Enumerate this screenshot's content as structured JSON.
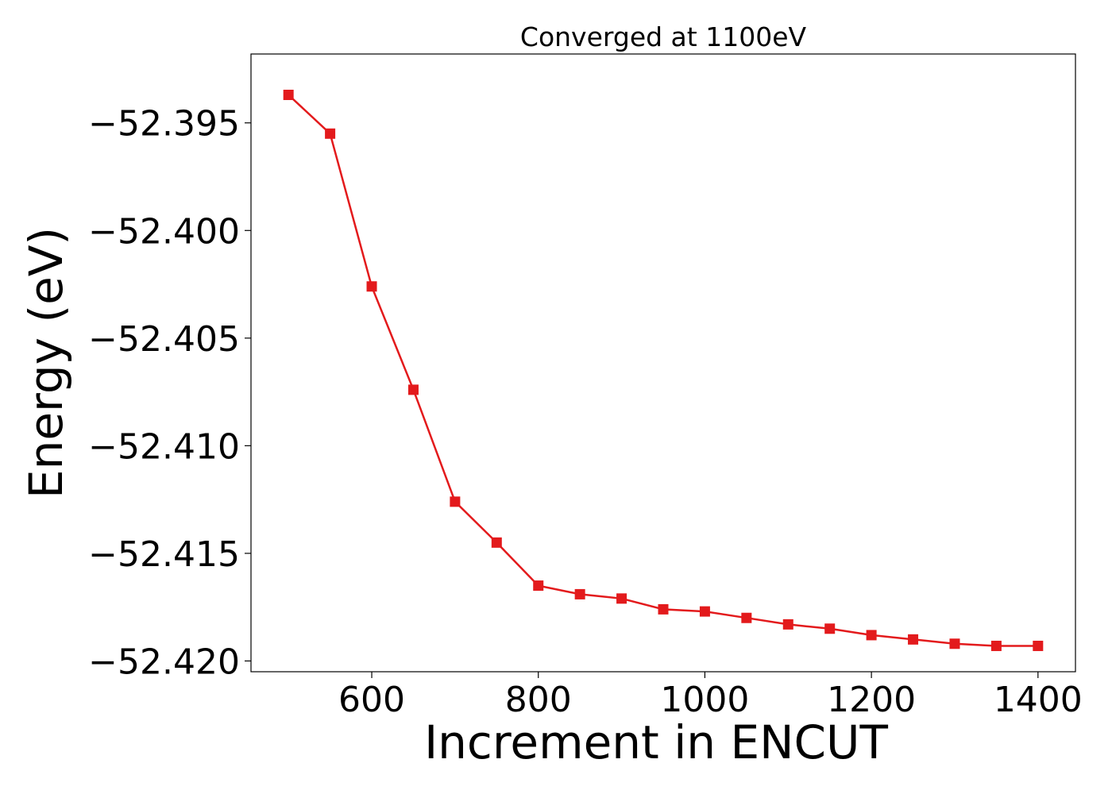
{
  "chart_data": {
    "type": "line",
    "title": "Converged at 1100eV",
    "xlabel": "Increment in ENCUT",
    "ylabel": "Energy (eV)",
    "xlim": [
      455,
      1445
    ],
    "ylim": [
      -52.4205,
      -52.3918
    ],
    "xticks": [
      600,
      800,
      1000,
      1200,
      1400
    ],
    "xtick_labels": [
      "600",
      "800",
      "1000",
      "1200",
      "1400"
    ],
    "yticks": [
      -52.395,
      -52.4,
      -52.405,
      -52.41,
      -52.415,
      -52.42
    ],
    "ytick_labels": [
      "−52.395",
      "−52.400",
      "−52.405",
      "−52.410",
      "−52.415",
      "−52.420"
    ],
    "grid": false,
    "color": "#e31a1c",
    "marker": "square",
    "x": [
      500,
      550,
      600,
      650,
      700,
      750,
      800,
      850,
      900,
      950,
      1000,
      1050,
      1100,
      1150,
      1200,
      1250,
      1300,
      1350,
      1400
    ],
    "y": [
      -52.3937,
      -52.3955,
      -52.4026,
      -52.4074,
      -52.4126,
      -52.4145,
      -52.4165,
      -52.4169,
      -52.4171,
      -52.4176,
      -52.4177,
      -52.418,
      -52.4183,
      -52.4185,
      -52.4188,
      -52.419,
      -52.4192,
      -52.4193,
      -52.4193
    ]
  }
}
